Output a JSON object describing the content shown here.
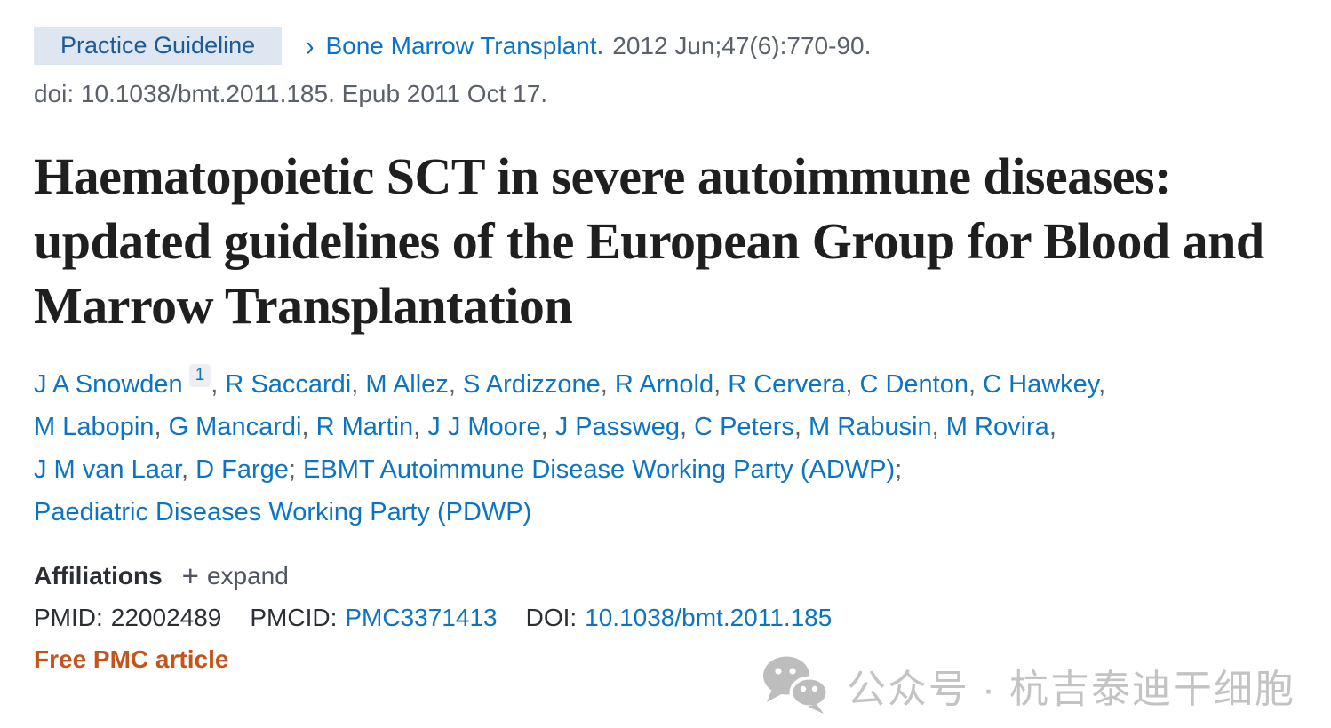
{
  "header": {
    "badge": "Practice Guideline",
    "chevron": "›",
    "journal": "Bone Marrow Transplant.",
    "citation": "2012 Jun;47(6):770-90.",
    "doi_line": "doi: 10.1038/bmt.2011.185. Epub 2011 Oct 17."
  },
  "title": "Haematopoietic SCT in severe autoimmune diseases: updated guidelines of the European Group for Blood and Marrow Transplantation",
  "authors": [
    {
      "name": "J A Snowden",
      "sup": "1",
      "sep": ","
    },
    {
      "name": "R Saccardi",
      "sep": ","
    },
    {
      "name": "M Allez",
      "sep": ","
    },
    {
      "name": "S Ardizzone",
      "sep": ","
    },
    {
      "name": "R Arnold",
      "sep": ","
    },
    {
      "name": "R Cervera",
      "sep": ","
    },
    {
      "name": "C Denton",
      "sep": ","
    },
    {
      "name": "C Hawkey",
      "sep": ",",
      "br": true
    },
    {
      "name": "M Labopin",
      "sep": ","
    },
    {
      "name": "G Mancardi",
      "sep": ","
    },
    {
      "name": "R Martin",
      "sep": ","
    },
    {
      "name": "J J Moore",
      "sep": ","
    },
    {
      "name": "J Passweg",
      "sep": ","
    },
    {
      "name": "C Peters",
      "sep": ","
    },
    {
      "name": "M Rabusin",
      "sep": ","
    },
    {
      "name": "M Rovira",
      "sep": ",",
      "br": true
    },
    {
      "name": "J M van Laar",
      "sep": ","
    },
    {
      "name": "D Farge",
      "sep": ";"
    },
    {
      "name": "EBMT Autoimmune Disease Working Party (ADWP)",
      "sep": ";",
      "br": true
    },
    {
      "name": "Paediatric Diseases Working Party (PDWP)",
      "sep": ""
    }
  ],
  "affiliations": {
    "label": "Affiliations",
    "plus": "+",
    "expand": "expand"
  },
  "identifiers": {
    "pmid_label": "PMID:",
    "pmid": "22002489",
    "pmcid_label": "PMCID:",
    "pmcid": "PMC3371413",
    "doi_label": "DOI:",
    "doi": "10.1038/bmt.2011.185"
  },
  "free_pmc": "Free PMC article",
  "watermark": {
    "icon": "wechat-icon",
    "text": "公众号 · 杭吉泰迪干细胞"
  },
  "colors": {
    "link_blue": "#0d74c2",
    "badge_bg": "#dde6f1",
    "badge_text": "#1e5a94",
    "muted_gray": "#5b616b",
    "title_dark": "#1f1f1f",
    "free_pmc_orange": "#c5531c",
    "watermark_gray": "#c3c3c3"
  }
}
